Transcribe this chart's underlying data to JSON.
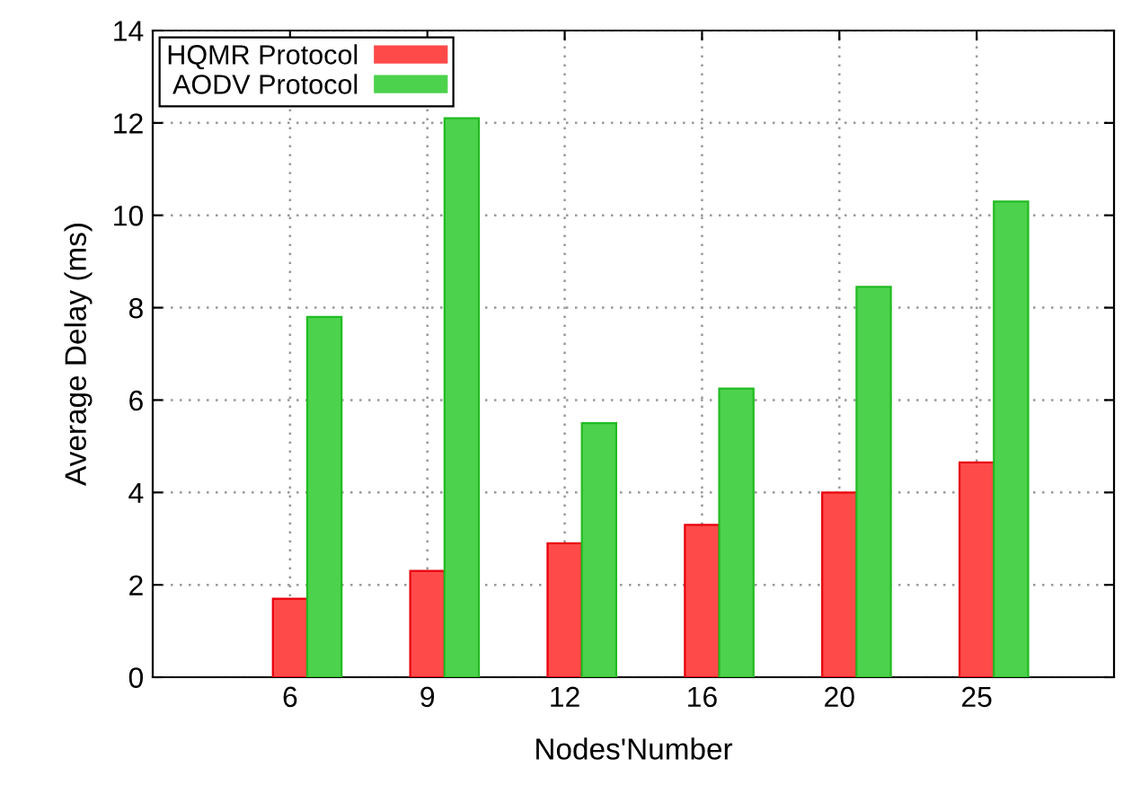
{
  "chart_data": {
    "type": "bar",
    "xlabel": "Nodes'Number",
    "ylabel": "Average Delay (ms)",
    "categories": [
      "6",
      "9",
      "12",
      "16",
      "20",
      "25"
    ],
    "series": [
      {
        "name": "HQMR Protocol",
        "color": "#ff4a4a",
        "values": [
          1.7,
          2.3,
          2.9,
          3.3,
          4.0,
          4.65
        ]
      },
      {
        "name": "AODV Protocol",
        "color": "#4dd24d",
        "values": [
          7.8,
          12.1,
          5.5,
          6.25,
          8.45,
          10.3
        ]
      }
    ],
    "ylim": [
      0,
      14
    ],
    "yticks": [
      0,
      2,
      4,
      6,
      8,
      10,
      12,
      14
    ],
    "grid": true,
    "legend": "top left"
  }
}
